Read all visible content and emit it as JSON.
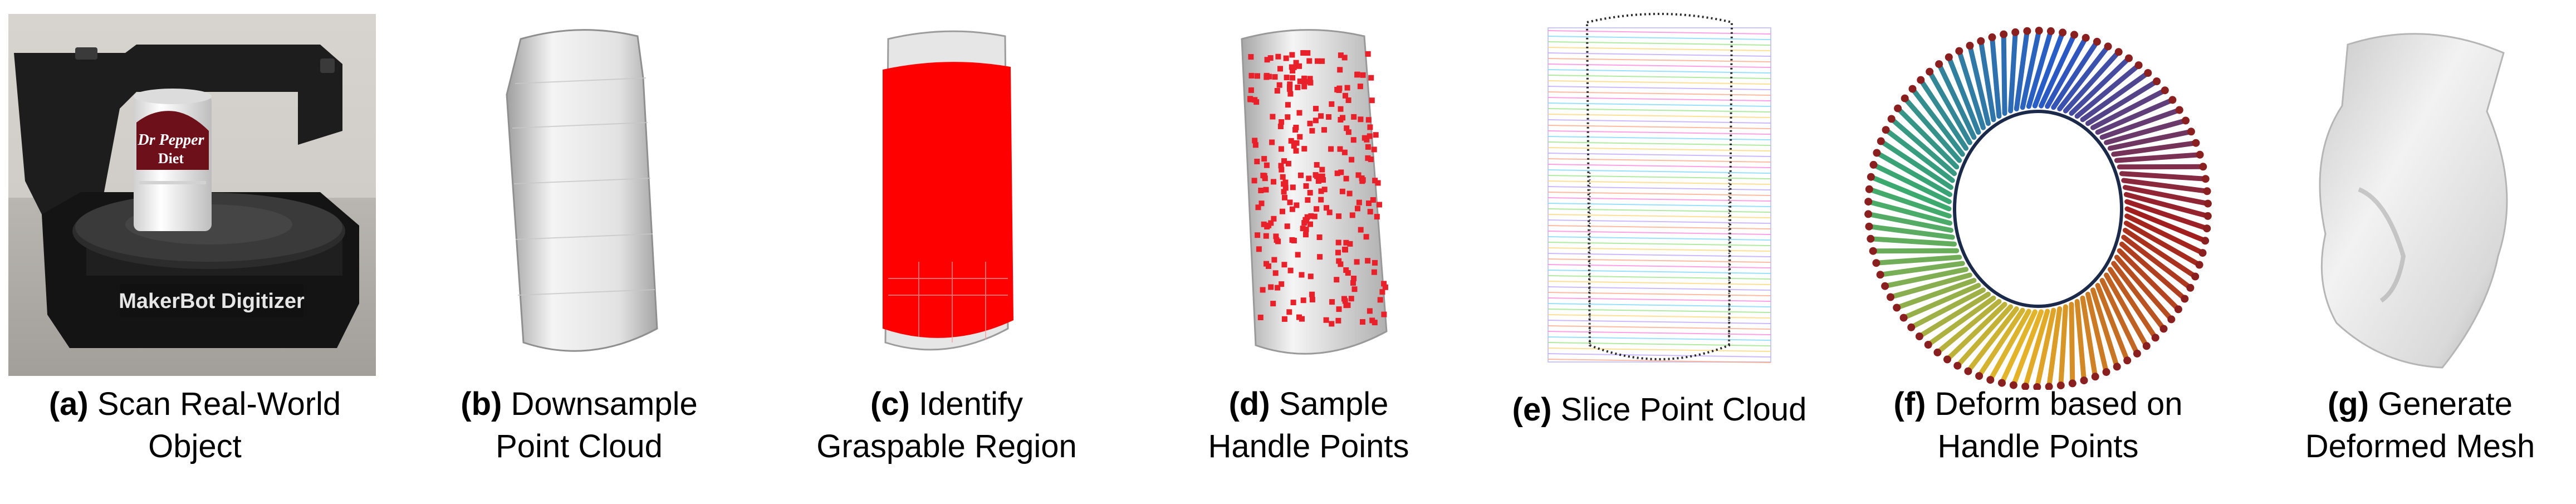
{
  "panels": [
    {
      "label": "(a)",
      "line1": "Scan Real-World",
      "line2": "Object"
    },
    {
      "label": "(b)",
      "line1": "Downsample",
      "line2": "Point Cloud"
    },
    {
      "label": "(c)",
      "line1": "Identify",
      "line2": "Graspable Region"
    },
    {
      "label": "(d)",
      "line1": "Sample",
      "line2": "Handle Points"
    },
    {
      "label": "(e)",
      "line1": "Slice Point Cloud",
      "line2": ""
    },
    {
      "label": "(f)",
      "line1": "Deform based on",
      "line2": "Handle Points"
    },
    {
      "label": "(g)",
      "line1": "Generate",
      "line2": "Deformed Mesh"
    }
  ],
  "photo": {
    "scanner_brand": "MakerBot Digitizer",
    "can_brand": "Dr Pepper",
    "can_sub": "Diet"
  },
  "colors": {
    "graspable_region": "#ff0000",
    "handle_points": "#e8202a",
    "can_surface": "#e9e9e9"
  }
}
